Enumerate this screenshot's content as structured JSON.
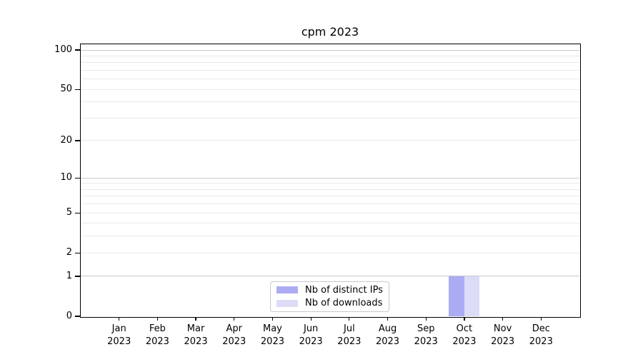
{
  "chart_data": {
    "type": "bar",
    "title": "cpm 2023",
    "categories": [
      "Jan",
      "Feb",
      "Mar",
      "Apr",
      "May",
      "Jun",
      "Jul",
      "Aug",
      "Sep",
      "Oct",
      "Nov",
      "Dec"
    ],
    "year_label": "2023",
    "series": [
      {
        "name": "Nb of distinct IPs",
        "color": "#acacf4",
        "values": [
          0,
          0,
          0,
          0,
          0,
          0,
          0,
          0,
          0,
          1,
          0,
          0
        ]
      },
      {
        "name": "Nb of downloads",
        "color": "#dcdcf6",
        "values": [
          0,
          0,
          0,
          0,
          0,
          0,
          0,
          0,
          0,
          1,
          0,
          0
        ]
      }
    ],
    "yticks": [
      0,
      1,
      2,
      5,
      10,
      20,
      50,
      100
    ],
    "yscale": "log1p",
    "ylim": [
      0,
      110
    ],
    "xlabel": "",
    "ylabel": "",
    "grid": true,
    "legend": {
      "labels": [
        "Nb of distinct IPs",
        "Nb of downloads"
      ],
      "position": "lower center"
    },
    "colors": {
      "axis": "#000000",
      "grid_major": "#c8c8c8",
      "grid_minor": "#e9e9e9",
      "background": "#ffffff",
      "legend_border": "#c9c9c9",
      "text": "#000000"
    }
  }
}
